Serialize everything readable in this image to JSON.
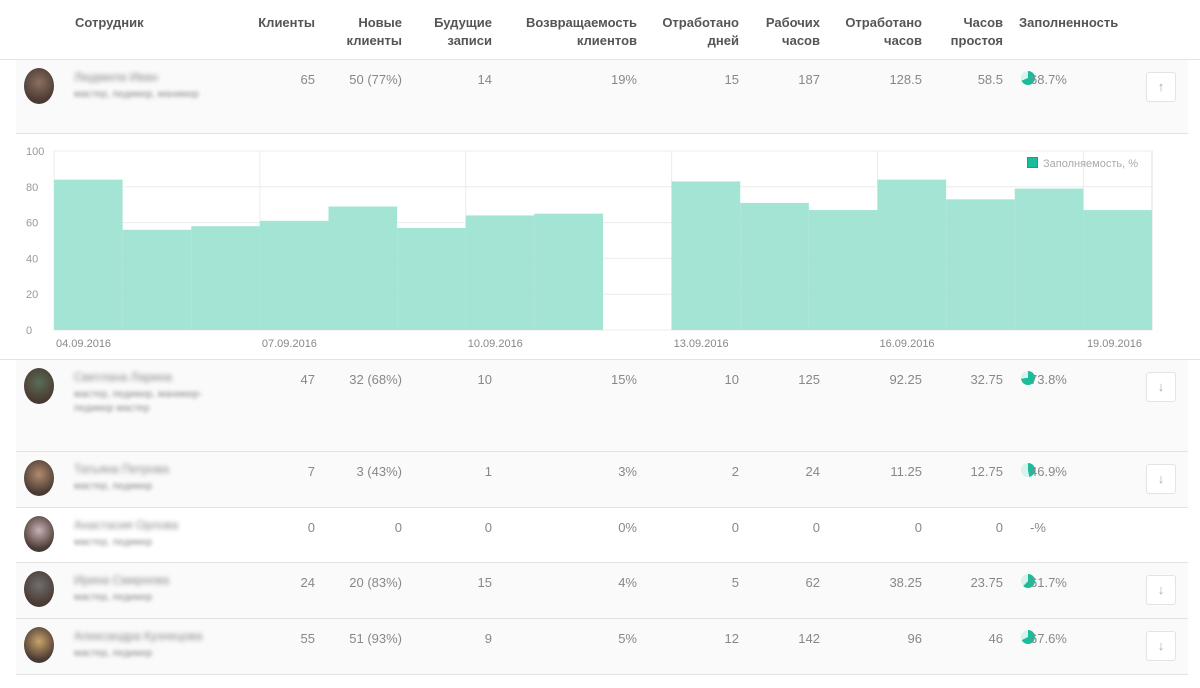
{
  "table": {
    "headers": {
      "employee": "Сотрудник",
      "clients": "Клиенты",
      "new_clients": "Новые\nклиенты",
      "future": "Будущие\nзаписи",
      "return": "Возвращаемость\nклиентов",
      "days": "Отработано\nдней",
      "work_hours": "Рабочих\nчасов",
      "worked_hours": "Отработано\nчасов",
      "idle": "Часов\nпростоя",
      "fill": "Заполненность"
    },
    "rows": [
      {
        "name": "Людмила Иван",
        "role": "мастер, педикюр, маникюр",
        "clients": "65",
        "new": "50 (77%)",
        "future": "14",
        "ret": "19%",
        "days": "15",
        "work": "187",
        "worked": "128.5",
        "idle": "58.5",
        "fill": "68.7%",
        "fill_value": 0.687,
        "arrow": "↑"
      },
      {
        "name": "Светлана Ларина",
        "role": "мастер, педикюр, маникюр-педикюр мастер",
        "clients": "47",
        "new": "32 (68%)",
        "future": "10",
        "ret": "15%",
        "days": "10",
        "work": "125",
        "worked": "92.25",
        "idle": "32.75",
        "fill": "73.8%",
        "fill_value": 0.738,
        "arrow": "↓"
      },
      {
        "name": "Татьяна Петрова",
        "role": "мастер, педикюр",
        "clients": "7",
        "new": "3 (43%)",
        "future": "1",
        "ret": "3%",
        "days": "2",
        "work": "24",
        "worked": "11.25",
        "idle": "12.75",
        "fill": "46.9%",
        "fill_value": 0.469,
        "arrow": "↓"
      },
      {
        "name": "Анастасия Орлова",
        "role": "мастер, педикюр",
        "clients": "0",
        "new": "0",
        "future": "0",
        "ret": "0%",
        "days": "0",
        "work": "0",
        "worked": "0",
        "idle": "0",
        "fill": "-%",
        "fill_value": 0,
        "arrow": ""
      },
      {
        "name": "Ирина Смирнова",
        "role": "мастер, педикюр",
        "clients": "24",
        "new": "20 (83%)",
        "future": "15",
        "ret": "4%",
        "days": "5",
        "work": "62",
        "worked": "38.25",
        "idle": "23.75",
        "fill": "61.7%",
        "fill_value": 0.617,
        "arrow": "↓"
      },
      {
        "name": "Александра Кузнецова",
        "role": "мастер, педикюр",
        "clients": "55",
        "new": "51 (93%)",
        "future": "9",
        "ret": "5%",
        "days": "12",
        "work": "142",
        "worked": "96",
        "idle": "46",
        "fill": "67.6%",
        "fill_value": 0.676,
        "arrow": "↓"
      }
    ]
  },
  "colors": {
    "accent": "#1abc9c",
    "bar_fill": "#a3e4d5",
    "pie_bg": "#ffffff"
  },
  "icons": {
    "arrow_up": "arrow-up-icon",
    "arrow_down": "arrow-down-icon",
    "pie": "pie-chart-icon"
  },
  "chart_data": {
    "type": "bar",
    "legend": "Заполняемость, %",
    "legend_position": "top-right",
    "ylim": [
      0,
      100
    ],
    "yticks": [
      "0",
      "20",
      "40",
      "60",
      "80",
      "100"
    ],
    "xtick_labels": [
      "04.09.2016",
      "07.09.2016",
      "10.09.2016",
      "13.09.2016",
      "16.09.2016",
      "19.09.2016"
    ],
    "categories": [
      "04.09.2016",
      "05.09.2016",
      "06.09.2016",
      "07.09.2016",
      "08.09.2016",
      "09.09.2016",
      "10.09.2016",
      "11.09.2016",
      "12.09.2016",
      "13.09.2016",
      "14.09.2016",
      "15.09.2016",
      "16.09.2016",
      "17.09.2016",
      "18.09.2016",
      "19.09.2016"
    ],
    "values": [
      84,
      56,
      58,
      61,
      69,
      57,
      64,
      65,
      0,
      83,
      71,
      67,
      84,
      73,
      79,
      67
    ],
    "grid": true
  }
}
